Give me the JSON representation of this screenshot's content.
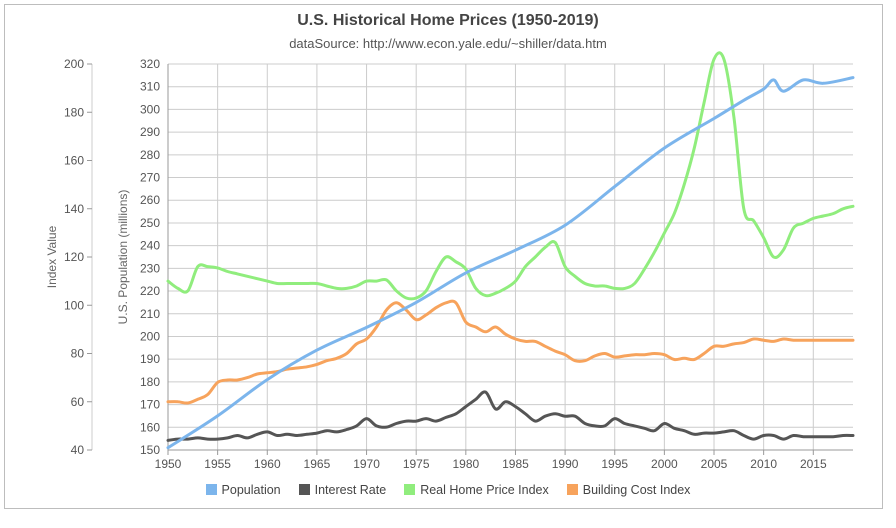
{
  "chart_data": {
    "type": "line",
    "title": "U.S. Historical Home Prices (1950-2019)",
    "subtitle": "dataSource: http://www.econ.yale.edu/~shiller/data.htm",
    "left_axis_label": "Index Value",
    "right_axis_label": "U.S. Population (millions)",
    "left_axis": {
      "min": 40,
      "max": 200,
      "ticks": [
        "200",
        "180",
        "160",
        "140",
        "120",
        "100",
        "80",
        "60",
        "40"
      ]
    },
    "right_axis": {
      "min": 150,
      "max": 320,
      "ticks": [
        "320",
        "310",
        "300",
        "290",
        "280",
        "270",
        "260",
        "250",
        "240",
        "230",
        "220",
        "210",
        "200",
        "190",
        "180",
        "170",
        "160",
        "150"
      ]
    },
    "x_axis": {
      "min": 1950,
      "max": 2019,
      "ticks": [
        "1950",
        "1955",
        "1960",
        "1965",
        "1970",
        "1975",
        "1980",
        "1985",
        "1990",
        "1995",
        "2000",
        "2005",
        "2010",
        "2015"
      ]
    },
    "grid": true,
    "legend_position": "bottom",
    "series": [
      {
        "name": "Population",
        "axis": "right",
        "color": "#7cb5ec",
        "points": [
          [
            1950,
            151
          ],
          [
            1955,
            165
          ],
          [
            1960,
            181
          ],
          [
            1965,
            194
          ],
          [
            1970,
            204
          ],
          [
            1975,
            215
          ],
          [
            1980,
            228
          ],
          [
            1985,
            238
          ],
          [
            1990,
            249
          ],
          [
            1995,
            266
          ],
          [
            2000,
            283
          ],
          [
            2005,
            296
          ],
          [
            2008,
            304
          ],
          [
            2010,
            309
          ],
          [
            2011,
            313
          ],
          [
            2012,
            308
          ],
          [
            2014,
            313
          ],
          [
            2016,
            311.5
          ],
          [
            2019,
            314
          ]
        ]
      },
      {
        "name": "Interest Rate",
        "axis": "left",
        "color": "#555555",
        "points": [
          [
            1950,
            44
          ],
          [
            1951,
            44.5
          ],
          [
            1952,
            44.5
          ],
          [
            1953,
            45
          ],
          [
            1954,
            44.5
          ],
          [
            1955,
            44.5
          ],
          [
            1956,
            45
          ],
          [
            1957,
            46
          ],
          [
            1958,
            45
          ],
          [
            1959,
            46.5
          ],
          [
            1960,
            47.5
          ],
          [
            1961,
            46
          ],
          [
            1962,
            46.5
          ],
          [
            1963,
            46
          ],
          [
            1964,
            46.5
          ],
          [
            1965,
            47
          ],
          [
            1966,
            48
          ],
          [
            1967,
            47.5
          ],
          [
            1968,
            48.5
          ],
          [
            1969,
            50
          ],
          [
            1970,
            53
          ],
          [
            1971,
            50
          ],
          [
            1972,
            49.5
          ],
          [
            1973,
            51
          ],
          [
            1974,
            52
          ],
          [
            1975,
            52
          ],
          [
            1976,
            53
          ],
          [
            1977,
            52
          ],
          [
            1978,
            53.5
          ],
          [
            1979,
            55
          ],
          [
            1980,
            58
          ],
          [
            1981,
            61
          ],
          [
            1982,
            64
          ],
          [
            1983,
            57
          ],
          [
            1984,
            60
          ],
          [
            1985,
            58
          ],
          [
            1986,
            55
          ],
          [
            1987,
            52
          ],
          [
            1988,
            54
          ],
          [
            1989,
            55
          ],
          [
            1990,
            54
          ],
          [
            1991,
            54
          ],
          [
            1992,
            51
          ],
          [
            1993,
            50
          ],
          [
            1994,
            50
          ],
          [
            1995,
            53
          ],
          [
            1996,
            51
          ],
          [
            1997,
            50
          ],
          [
            1998,
            49
          ],
          [
            1999,
            48
          ],
          [
            2000,
            51
          ],
          [
            2001,
            49
          ],
          [
            2002,
            48
          ],
          [
            2003,
            46.5
          ],
          [
            2004,
            47
          ],
          [
            2005,
            47
          ],
          [
            2006,
            47.5
          ],
          [
            2007,
            48
          ],
          [
            2008,
            46
          ],
          [
            2009,
            44.5
          ],
          [
            2010,
            46
          ],
          [
            2011,
            46
          ],
          [
            2012,
            44.5
          ],
          [
            2013,
            46
          ],
          [
            2014,
            45.5
          ],
          [
            2015,
            45.5
          ],
          [
            2016,
            45.5
          ],
          [
            2017,
            45.5
          ],
          [
            2018,
            46
          ],
          [
            2019,
            46
          ]
        ]
      },
      {
        "name": "Real Home Price Index",
        "axis": "left",
        "color": "#90ed7d",
        "points": [
          [
            1950,
            110
          ],
          [
            1951,
            107
          ],
          [
            1952,
            106
          ],
          [
            1953,
            116
          ],
          [
            1954,
            116
          ],
          [
            1955,
            115.5
          ],
          [
            1956,
            114
          ],
          [
            1957,
            113
          ],
          [
            1958,
            112
          ],
          [
            1959,
            111
          ],
          [
            1960,
            110
          ],
          [
            1961,
            109
          ],
          [
            1962,
            109
          ],
          [
            1963,
            109
          ],
          [
            1964,
            109
          ],
          [
            1965,
            109
          ],
          [
            1966,
            108
          ],
          [
            1967,
            107
          ],
          [
            1968,
            107
          ],
          [
            1969,
            108
          ],
          [
            1970,
            110
          ],
          [
            1971,
            110
          ],
          [
            1972,
            110.5
          ],
          [
            1973,
            106
          ],
          [
            1974,
            103
          ],
          [
            1975,
            103
          ],
          [
            1976,
            106
          ],
          [
            1977,
            114
          ],
          [
            1978,
            120
          ],
          [
            1979,
            118
          ],
          [
            1980,
            115
          ],
          [
            1981,
            107
          ],
          [
            1982,
            104
          ],
          [
            1983,
            105
          ],
          [
            1984,
            107
          ],
          [
            1985,
            110
          ],
          [
            1986,
            116
          ],
          [
            1987,
            120
          ],
          [
            1988,
            124
          ],
          [
            1989,
            126
          ],
          [
            1990,
            116
          ],
          [
            1991,
            112
          ],
          [
            1992,
            109
          ],
          [
            1993,
            108
          ],
          [
            1994,
            108
          ],
          [
            1995,
            107
          ],
          [
            1996,
            107
          ],
          [
            1997,
            109
          ],
          [
            1998,
            115
          ],
          [
            1999,
            122
          ],
          [
            2000,
            130
          ],
          [
            2001,
            138
          ],
          [
            2002,
            150
          ],
          [
            2003,
            165
          ],
          [
            2004,
            184
          ],
          [
            2005,
            202
          ],
          [
            2006,
            202
          ],
          [
            2007,
            178
          ],
          [
            2008,
            140
          ],
          [
            2009,
            135
          ],
          [
            2010,
            128
          ],
          [
            2011,
            120
          ],
          [
            2012,
            123
          ],
          [
            2013,
            132
          ],
          [
            2014,
            134
          ],
          [
            2015,
            136
          ],
          [
            2016,
            137
          ],
          [
            2017,
            138
          ],
          [
            2018,
            140
          ],
          [
            2019,
            141
          ]
        ]
      },
      {
        "name": "Building Cost Index",
        "axis": "left",
        "color": "#f7a35c",
        "points": [
          [
            1950,
            60
          ],
          [
            1951,
            60
          ],
          [
            1952,
            59.5
          ],
          [
            1953,
            61
          ],
          [
            1954,
            63
          ],
          [
            1955,
            68
          ],
          [
            1956,
            69
          ],
          [
            1957,
            69
          ],
          [
            1958,
            70
          ],
          [
            1959,
            71.5
          ],
          [
            1960,
            72
          ],
          [
            1961,
            72.5
          ],
          [
            1962,
            73.5
          ],
          [
            1963,
            74
          ],
          [
            1964,
            74.5
          ],
          [
            1965,
            75.5
          ],
          [
            1966,
            77
          ],
          [
            1967,
            78
          ],
          [
            1968,
            80
          ],
          [
            1969,
            84
          ],
          [
            1970,
            86
          ],
          [
            1971,
            91
          ],
          [
            1972,
            98
          ],
          [
            1973,
            101
          ],
          [
            1974,
            98
          ],
          [
            1975,
            94
          ],
          [
            1976,
            96
          ],
          [
            1977,
            99
          ],
          [
            1978,
            101
          ],
          [
            1979,
            101
          ],
          [
            1980,
            93
          ],
          [
            1981,
            91
          ],
          [
            1982,
            89
          ],
          [
            1983,
            91
          ],
          [
            1984,
            88
          ],
          [
            1985,
            86
          ],
          [
            1986,
            85
          ],
          [
            1987,
            85
          ],
          [
            1988,
            83
          ],
          [
            1989,
            81
          ],
          [
            1990,
            79.5
          ],
          [
            1991,
            77
          ],
          [
            1992,
            77
          ],
          [
            1993,
            79
          ],
          [
            1994,
            80
          ],
          [
            1995,
            78.5
          ],
          [
            1996,
            79
          ],
          [
            1997,
            79.5
          ],
          [
            1998,
            79.5
          ],
          [
            1999,
            80
          ],
          [
            2000,
            79.5
          ],
          [
            2001,
            77.5
          ],
          [
            2002,
            78
          ],
          [
            2003,
            77.5
          ],
          [
            2004,
            80
          ],
          [
            2005,
            83
          ],
          [
            2006,
            83
          ],
          [
            2007,
            84
          ],
          [
            2008,
            84.5
          ],
          [
            2009,
            86
          ],
          [
            2010,
            85.5
          ],
          [
            2011,
            85
          ],
          [
            2012,
            86
          ],
          [
            2013,
            85.5
          ],
          [
            2014,
            85.5
          ],
          [
            2015,
            85.5
          ],
          [
            2016,
            85.5
          ],
          [
            2017,
            85.5
          ],
          [
            2018,
            85.5
          ],
          [
            2019,
            85.5
          ]
        ]
      }
    ]
  }
}
